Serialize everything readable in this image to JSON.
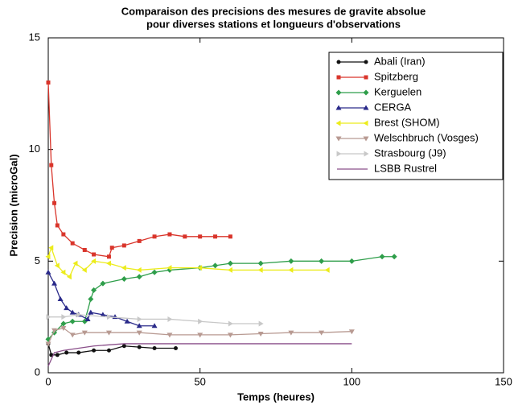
{
  "chart_data": {
    "type": "line",
    "title": [
      "Comparaison des precisions des mesures de gravite absolue",
      "pour diverses stations et longueurs d'observations"
    ],
    "x_label": "Temps (heures)",
    "y_label": "Precision (microGal)",
    "xlim": [
      0,
      150
    ],
    "ylim": [
      0,
      15
    ],
    "xticks": [
      0,
      50,
      100,
      150
    ],
    "yticks": [
      0,
      5,
      10,
      15
    ],
    "grid": false,
    "legend": "upper right",
    "series": [
      {
        "name": "Abali (Iran)",
        "color": "#111111",
        "marker": "circle",
        "x": [
          0,
          1,
          3,
          6,
          10,
          15,
          20,
          25,
          30,
          35,
          42
        ],
        "values": [
          1.3,
          0.8,
          0.8,
          0.9,
          0.9,
          1.0,
          1.0,
          1.2,
          1.15,
          1.1,
          1.1
        ]
      },
      {
        "name": "Spitzberg",
        "color": "#d9352b",
        "marker": "square",
        "x": [
          0,
          1,
          2,
          3,
          5,
          8,
          12,
          15,
          20,
          21,
          25,
          30,
          35,
          40,
          45,
          50,
          55,
          60
        ],
        "values": [
          13,
          9.3,
          7.6,
          6.6,
          6.2,
          5.8,
          5.5,
          5.3,
          5.2,
          5.6,
          5.7,
          5.9,
          6.1,
          6.2,
          6.1,
          6.1,
          6.1,
          6.1
        ]
      },
      {
        "name": "Kerguelen",
        "color": "#2e9e4a",
        "marker": "diamond",
        "x": [
          0,
          2,
          5,
          8,
          12,
          14,
          15,
          18,
          25,
          30,
          35,
          40,
          50,
          55,
          60,
          70,
          80,
          90,
          100,
          110,
          114
        ],
        "values": [
          1.5,
          1.8,
          2.2,
          2.3,
          2.3,
          3.3,
          3.7,
          4.0,
          4.2,
          4.3,
          4.5,
          4.6,
          4.7,
          4.8,
          4.9,
          4.9,
          5.0,
          5.0,
          5.0,
          5.2,
          5.2
        ]
      },
      {
        "name": "CERGA",
        "color": "#2a2a8a",
        "marker": "triangle-up",
        "x": [
          0,
          2,
          4,
          6,
          8,
          10,
          13,
          14,
          18,
          22,
          26,
          30,
          35
        ],
        "values": [
          4.5,
          4.0,
          3.3,
          2.9,
          2.7,
          2.6,
          2.4,
          2.7,
          2.6,
          2.5,
          2.3,
          2.1,
          2.1
        ]
      },
      {
        "name": "Brest (SHOM)",
        "color": "#ecec1c",
        "marker": "triangle-left",
        "x": [
          0,
          1,
          3,
          5,
          7,
          9,
          12,
          15,
          20,
          25,
          30,
          40,
          50,
          60,
          70,
          80,
          92
        ],
        "values": [
          5.2,
          5.6,
          4.8,
          4.5,
          4.3,
          4.9,
          4.6,
          5.0,
          4.9,
          4.7,
          4.6,
          4.7,
          4.7,
          4.6,
          4.6,
          4.6,
          4.6
        ]
      },
      {
        "name": "Welschbruch (Vosges)",
        "color": "#b89a92",
        "marker": "triangle-down",
        "x": [
          0,
          2,
          5,
          8,
          12,
          20,
          30,
          40,
          50,
          60,
          70,
          80,
          90,
          100
        ],
        "values": [
          1.3,
          1.9,
          2.0,
          1.7,
          1.8,
          1.8,
          1.8,
          1.7,
          1.7,
          1.7,
          1.75,
          1.8,
          1.8,
          1.85
        ]
      },
      {
        "name": "Strasbourg (J9)",
        "color": "#c8c8c8",
        "marker": "triangle-right",
        "x": [
          0,
          5,
          10,
          20,
          30,
          40,
          50,
          60,
          70
        ],
        "values": [
          2.5,
          2.5,
          2.6,
          2.5,
          2.4,
          2.4,
          2.3,
          2.2,
          2.2
        ]
      },
      {
        "name": "LSBB Rustrel",
        "color": "#8a4f8a",
        "marker": "none",
        "x": [
          0,
          2,
          5,
          10,
          15,
          25,
          50,
          75,
          100
        ],
        "values": [
          0.3,
          0.9,
          1.0,
          1.1,
          1.2,
          1.3,
          1.3,
          1.3,
          1.3
        ]
      }
    ]
  }
}
